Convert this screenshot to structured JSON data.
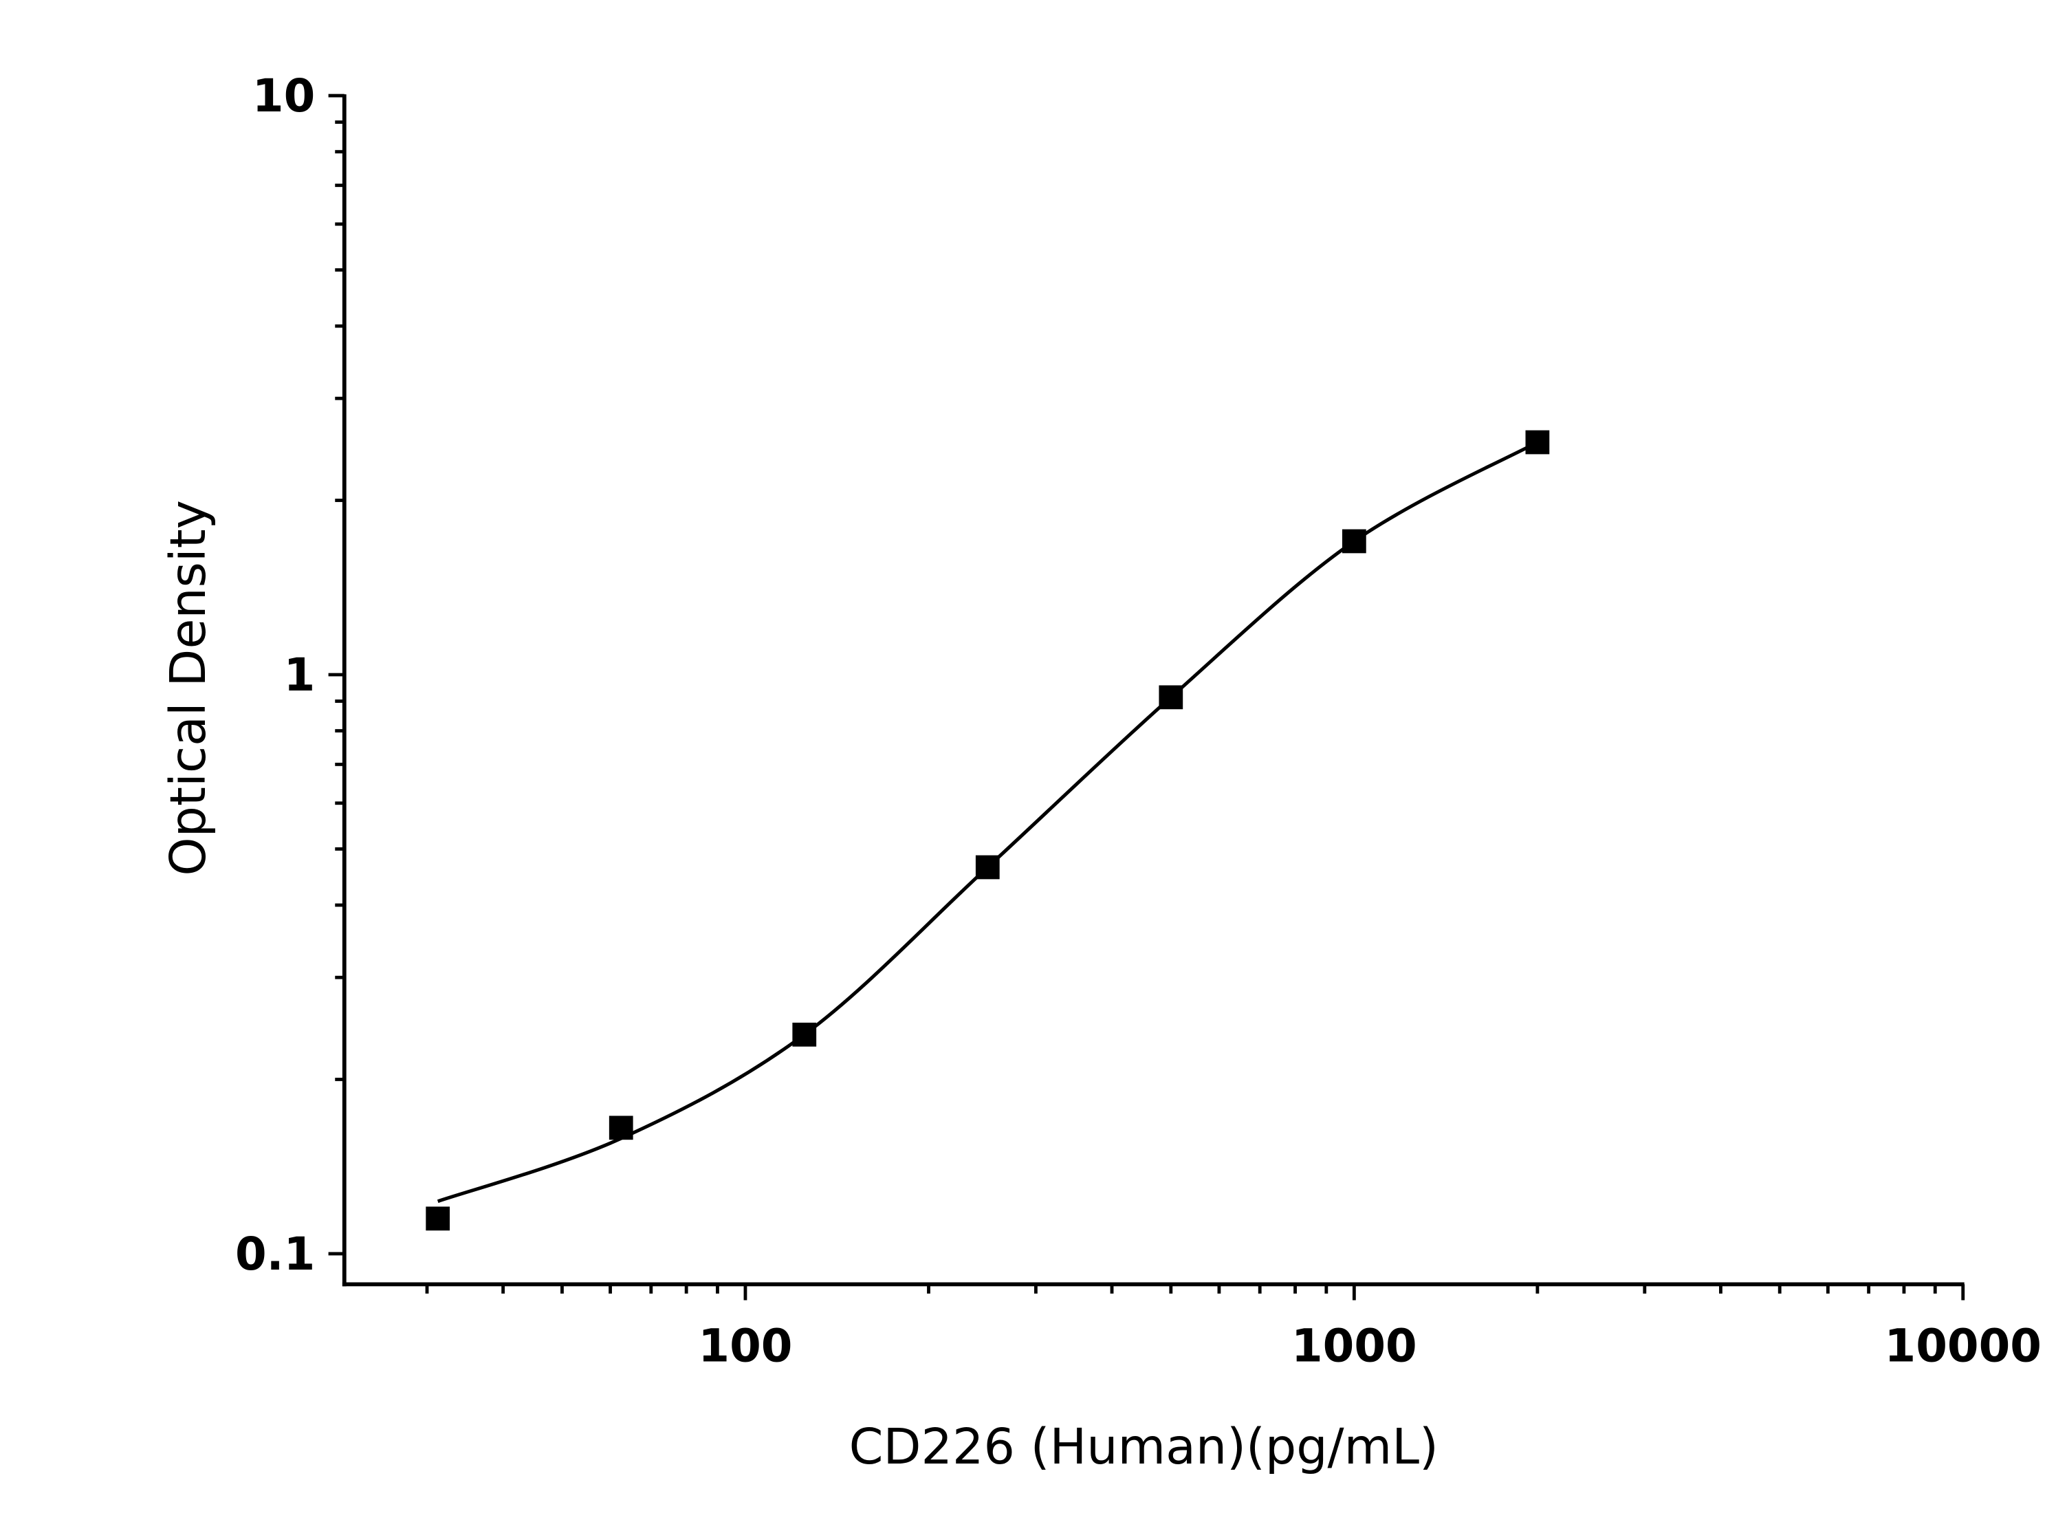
{
  "chart_data": {
    "type": "scatter",
    "xlabel": "CD226 (Human)(pg/mL)",
    "ylabel": "Optical Density",
    "x_scale": "log",
    "y_scale": "log",
    "xlim": [
      22,
      10000
    ],
    "ylim": [
      0.0895,
      10
    ],
    "x_ticks": [
      100,
      1000,
      10000
    ],
    "x_tick_labels": [
      "100",
      "1000",
      "10000"
    ],
    "y_ticks": [
      0.1,
      1,
      10
    ],
    "y_tick_labels": [
      "0.1",
      "1",
      "10"
    ],
    "grid": false,
    "legend": "none",
    "marker": "square",
    "color": "#000000",
    "series": [
      {
        "x": [
          31.25,
          62.5,
          125,
          250,
          500,
          1000,
          2000
        ],
        "y": [
          0.115,
          0.165,
          0.239,
          0.465,
          0.914,
          1.7,
          2.52
        ],
        "fit_curve": true
      }
    ]
  }
}
